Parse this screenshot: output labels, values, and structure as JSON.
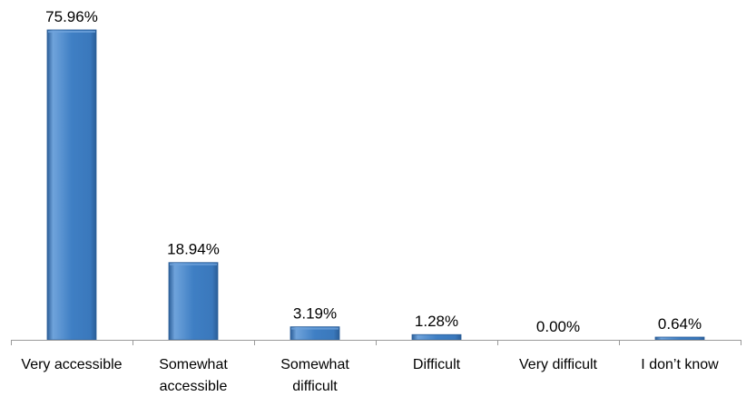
{
  "chart_data": {
    "type": "bar",
    "categories": [
      [
        "Very accessible"
      ],
      [
        "Somewhat",
        "accessible"
      ],
      [
        "Somewhat",
        "difficult"
      ],
      [
        "Difficult"
      ],
      [
        "Very difficult"
      ],
      [
        "I don’t know"
      ]
    ],
    "values": [
      75.96,
      18.94,
      3.19,
      1.28,
      0.0,
      0.64
    ],
    "data_labels": [
      "75.96%",
      "18.94%",
      "3.19%",
      "1.28%",
      "0.00%",
      "0.64%"
    ],
    "title": "",
    "xlabel": "",
    "ylabel": "",
    "ylim": [
      0,
      80
    ],
    "grid": false,
    "legend": "none",
    "colors": {
      "bar_fill": "#3F7FC4",
      "bar_light": "#6FA3DB",
      "bar_dark": "#2B5E98",
      "axis": "#9A9A9A"
    }
  }
}
